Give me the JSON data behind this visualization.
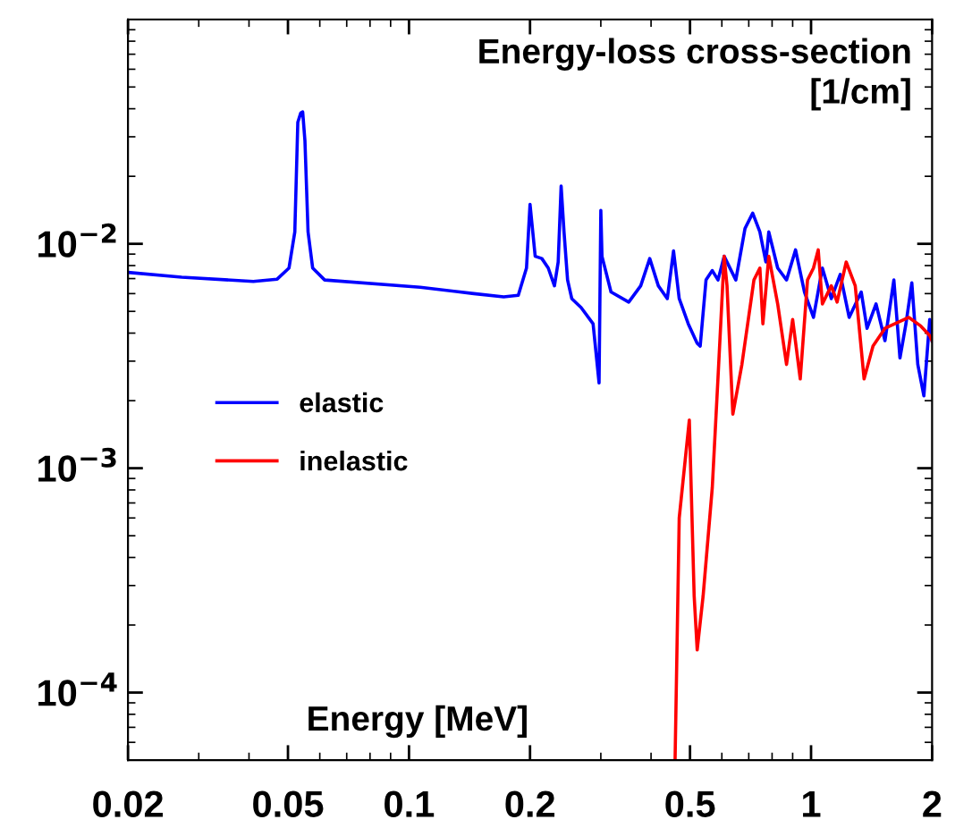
{
  "chart_data": {
    "type": "line",
    "title": "Energy-loss cross-section\n[1/cm]",
    "xlabel": "Energy [MeV]",
    "log": "xy",
    "xlim": [
      0.02,
      2
    ],
    "ylim": [
      5e-05,
      0.1
    ],
    "xticks": [
      0.02,
      0.05,
      0.1,
      0.2,
      0.5,
      1,
      2
    ],
    "yticks": [
      {
        "value": 0.01,
        "label": "10$^{−2}$"
      },
      {
        "value": 0.001,
        "label": "10$^{−3}$"
      },
      {
        "value": 0.0001,
        "label": "10$^{−4}$"
      }
    ],
    "grid": false,
    "legend": "center left",
    "line_style": "solid",
    "marker": "none",
    "series": [
      {
        "name": "elastic",
        "color": "#0000ff",
        "x": [
          0.02,
          0.0272,
          0.041,
          0.047,
          0.0503,
          0.052,
          0.0529,
          0.0538,
          0.0544,
          0.0551,
          0.0561,
          0.0576,
          0.0617,
          0.1066,
          0.145,
          0.172,
          0.187,
          0.196,
          0.2,
          0.206,
          0.214,
          0.222,
          0.23,
          0.235,
          0.239,
          0.243,
          0.248,
          0.254,
          0.268,
          0.287,
          0.297,
          0.3,
          0.302,
          0.318,
          0.352,
          0.377,
          0.397,
          0.417,
          0.439,
          0.455,
          0.47,
          0.495,
          0.521,
          0.53,
          0.548,
          0.568,
          0.587,
          0.608,
          0.65,
          0.685,
          0.716,
          0.746,
          0.772,
          0.785,
          0.826,
          0.869,
          0.915,
          0.963,
          1.014,
          1.067,
          1.123,
          1.182,
          1.244,
          1.333,
          1.378,
          1.451,
          1.527,
          1.607,
          1.664,
          1.722,
          1.781,
          1.843,
          1.908,
          1.973,
          2.0
        ],
        "values": [
          0.00746,
          0.0071,
          0.0068,
          0.00696,
          0.0078,
          0.0113,
          0.0348,
          0.0383,
          0.0387,
          0.0289,
          0.0113,
          0.0078,
          0.0069,
          0.0064,
          0.006,
          0.0058,
          0.0059,
          0.0078,
          0.015,
          0.0088,
          0.0086,
          0.0078,
          0.0065,
          0.0083,
          0.0181,
          0.0113,
          0.0069,
          0.0057,
          0.0052,
          0.0044,
          0.0024,
          0.0141,
          0.0088,
          0.0061,
          0.0055,
          0.0065,
          0.0086,
          0.0065,
          0.0057,
          0.0093,
          0.0057,
          0.0044,
          0.0036,
          0.0035,
          0.0069,
          0.0076,
          0.0069,
          0.0088,
          0.0069,
          0.0117,
          0.0137,
          0.0113,
          0.0083,
          0.0113,
          0.0078,
          0.0069,
          0.0094,
          0.0061,
          0.0047,
          0.0078,
          0.0057,
          0.0073,
          0.0047,
          0.0061,
          0.0042,
          0.0054,
          0.0037,
          0.0069,
          0.0031,
          0.0044,
          0.0067,
          0.0029,
          0.0021,
          0.0046,
          0.0037
        ]
      },
      {
        "name": "inelastic",
        "color": "#ff0000",
        "x": [
          0.459,
          0.47,
          0.498,
          0.512,
          0.521,
          0.539,
          0.568,
          0.587,
          0.608,
          0.618,
          0.639,
          0.673,
          0.721,
          0.746,
          0.759,
          0.785,
          0.826,
          0.869,
          0.9,
          0.94,
          0.98,
          1.014,
          1.042,
          1.067,
          1.123,
          1.161,
          1.223,
          1.288,
          1.355,
          1.426,
          1.527,
          1.751,
          1.875,
          1.973,
          2.0
        ],
        "values": [
          5e-05,
          0.0006,
          0.00164,
          0.00027,
          0.000155,
          0.00027,
          0.00082,
          0.00254,
          0.0088,
          0.0065,
          0.00174,
          0.0029,
          0.0069,
          0.0078,
          0.0044,
          0.0088,
          0.0054,
          0.0029,
          0.0046,
          0.0025,
          0.0069,
          0.0078,
          0.0094,
          0.0054,
          0.0065,
          0.0055,
          0.0083,
          0.0065,
          0.0025,
          0.0035,
          0.0042,
          0.0047,
          0.0043,
          0.0039,
          0.0037
        ]
      }
    ]
  }
}
